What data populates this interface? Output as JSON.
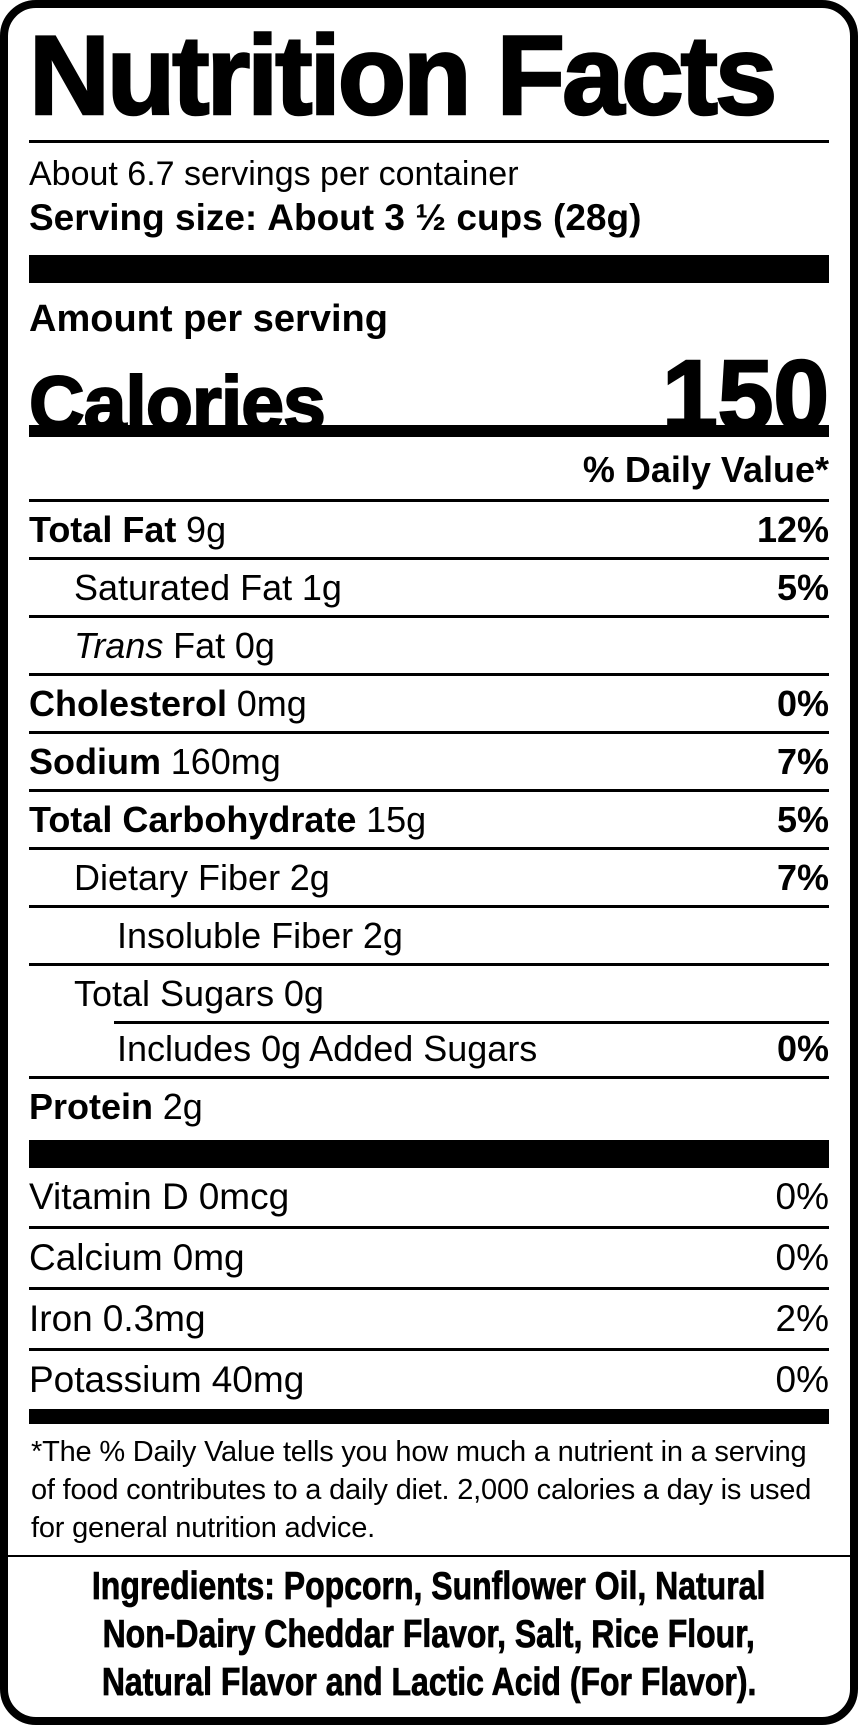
{
  "header": {
    "title": "Nutrition Facts",
    "servings_per_container": "About 6.7 servings per container",
    "serving_size_label": "Serving size:",
    "serving_size_value": "About 3 ½ cups (28g)"
  },
  "calories": {
    "amount_per_serving_label": "Amount per serving",
    "label": "Calories",
    "value": "150"
  },
  "daily_value_header": "% Daily Value*",
  "nutrients": [
    {
      "name": "Total Fat",
      "amount": "9g",
      "dv": "12%"
    },
    {
      "name": "Saturated Fat",
      "amount": "1g",
      "dv": "5%"
    },
    {
      "name_italic": "Trans",
      "name": "Fat",
      "amount": "0g",
      "dv": ""
    },
    {
      "name": "Cholesterol",
      "amount": "0mg",
      "dv": "0%"
    },
    {
      "name": "Sodium",
      "amount": "160mg",
      "dv": "7%"
    },
    {
      "name": "Total Carbohydrate",
      "amount": "15g",
      "dv": "5%"
    },
    {
      "name": "Dietary Fiber",
      "amount": "2g",
      "dv": "7%"
    },
    {
      "name": "Insoluble Fiber",
      "amount": "2g",
      "dv": ""
    },
    {
      "name": "Total Sugars",
      "amount": "0g",
      "dv": ""
    },
    {
      "name": "Includes 0g Added Sugars",
      "amount": "",
      "dv": "0%"
    },
    {
      "name": "Protein",
      "amount": "2g",
      "dv": ""
    }
  ],
  "vitamins": [
    {
      "name": "Vitamin D",
      "amount": "0mcg",
      "dv": "0%"
    },
    {
      "name": "Calcium",
      "amount": "0mg",
      "dv": "0%"
    },
    {
      "name": "Iron",
      "amount": "0.3mg",
      "dv": "2%"
    },
    {
      "name": "Potassium",
      "amount": "40mg",
      "dv": "0%"
    }
  ],
  "footnote": "*The % Daily Value tells you how much a nutrient in a serving of food contributes to a daily diet. 2,000 calories a day is used for general nutrition advice.",
  "ingredients_lines": {
    "line1": "Ingredients: Popcorn, Sunflower Oil, Natural",
    "line2": "Non-Dairy Cheddar Flavor, Salt, Rice Flour,",
    "line3": "Natural Flavor and Lactic Acid (For Flavor)."
  },
  "colors": {
    "text": "#000000",
    "background": "#ffffff"
  }
}
